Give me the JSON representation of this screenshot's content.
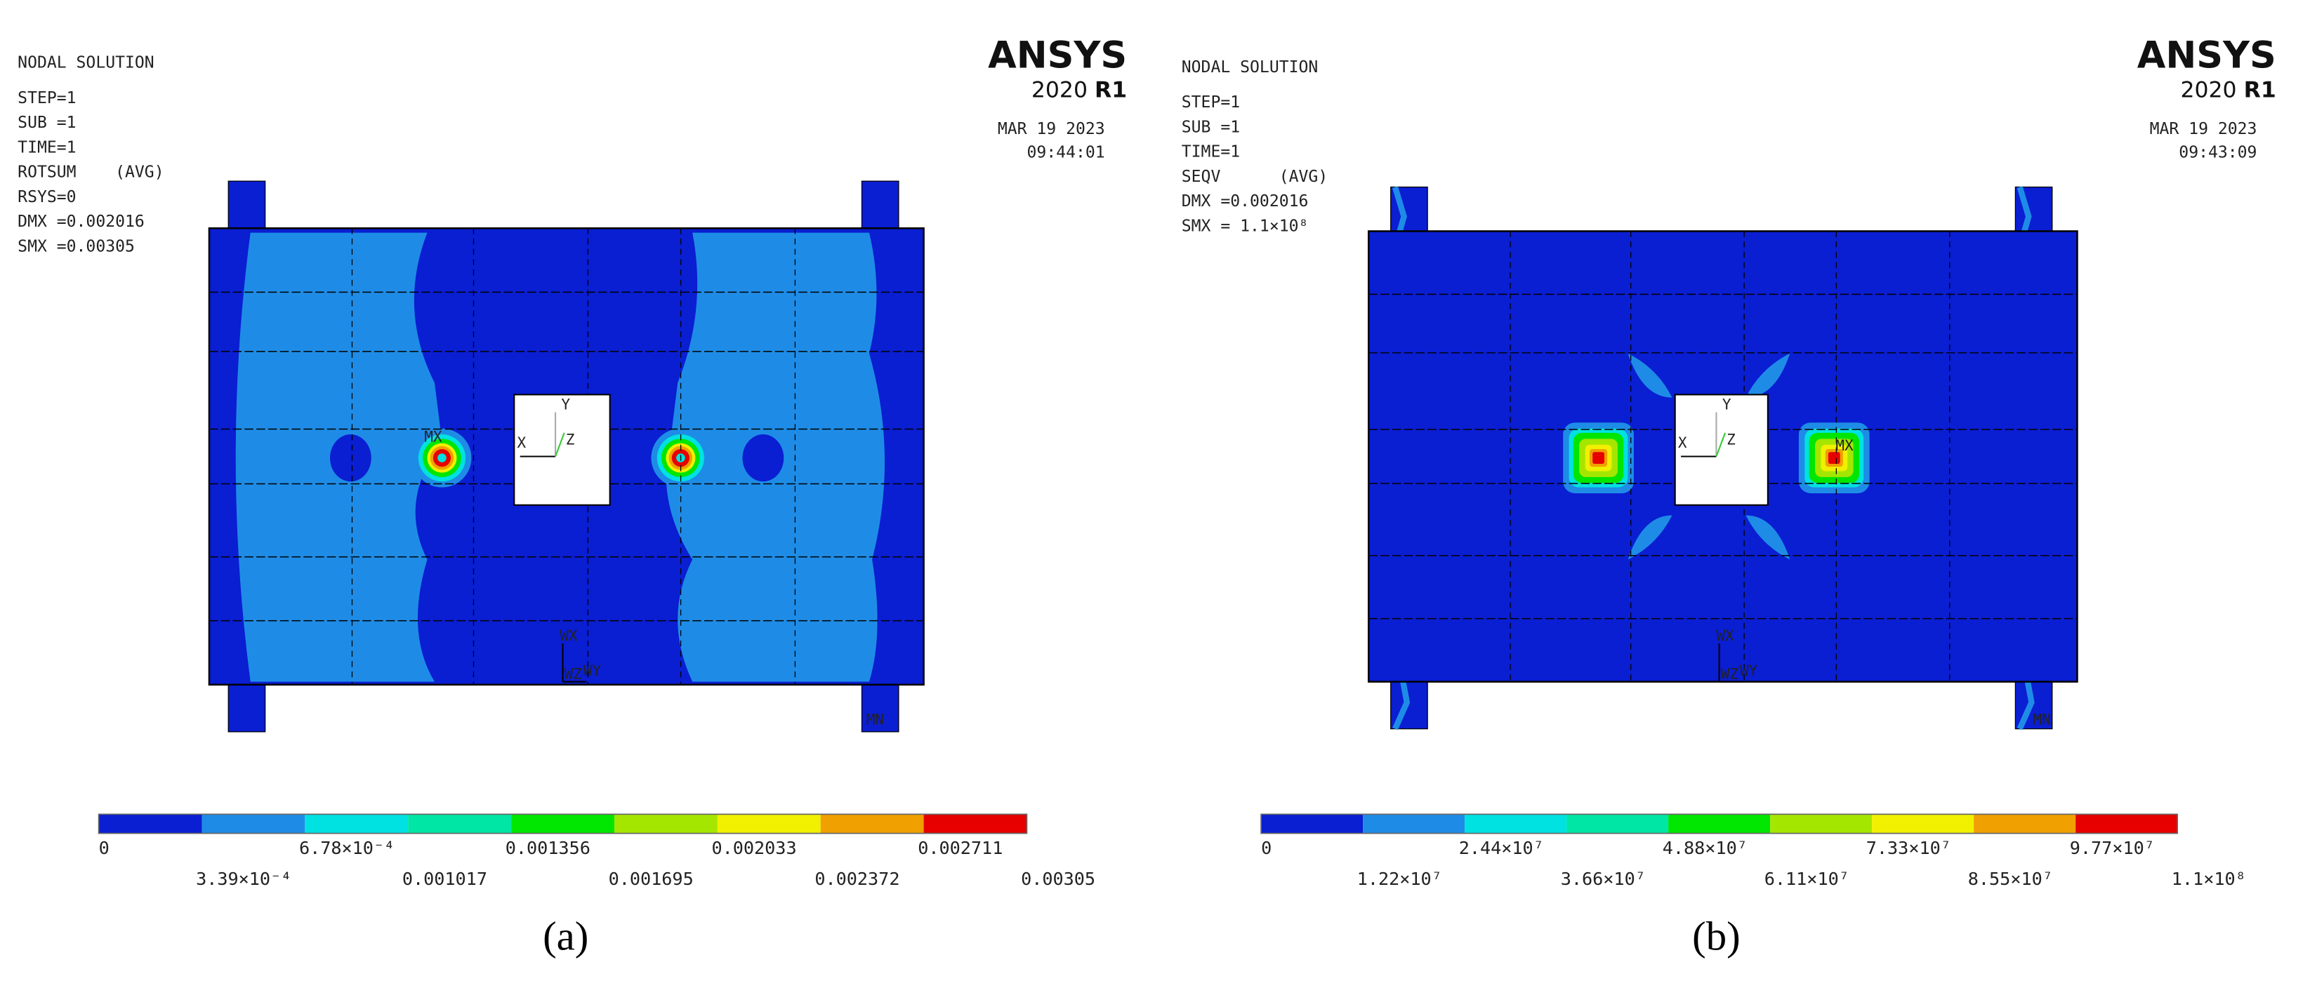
{
  "panels": [
    {
      "caption": "(a)",
      "logo": "ANSYS",
      "version": "2020",
      "release": "R1",
      "date": "MAR 19 2023",
      "time": "09:44:01",
      "info": [
        "NODAL SOLUTION",
        "STEP=1",
        "SUB =1",
        "TIME=1",
        "ROTSUM    (AVG)",
        "RSYS=0",
        "DMX =0.002016",
        "SMX =0.00305"
      ],
      "max_label": "MX",
      "min_label": "MN",
      "triad": [
        "X",
        "Y",
        "Z"
      ],
      "work_triad": [
        "WX",
        "WZ",
        "WY"
      ],
      "legend": {
        "colors": [
          "#0a1ed2",
          "#1e8ce6",
          "#00e1e1",
          "#00e6a5",
          "#00e600",
          "#a5e600",
          "#f0f000",
          "#f0a000",
          "#e60000"
        ],
        "labels": [
          "0",
          "3.39×10⁻⁴",
          "6.78×10⁻⁴",
          "0.001017",
          "0.001356",
          "0.001695",
          "0.002033",
          "0.002372",
          "0.002711",
          "0.00305"
        ]
      }
    },
    {
      "caption": "(b)",
      "logo": "ANSYS",
      "version": "2020",
      "release": "R1",
      "date": "MAR 19 2023",
      "time": "09:43:09",
      "info": [
        "NODAL SOLUTION",
        "STEP=1",
        "SUB =1",
        "TIME=1",
        "SEQV      (AVG)",
        "DMX =0.002016",
        "SMX = 1.1×10⁸"
      ],
      "max_label": "MX",
      "min_label": "MN",
      "triad": [
        "X",
        "Y",
        "Z"
      ],
      "work_triad": [
        "WX",
        "WZ",
        "WY"
      ],
      "legend": {
        "colors": [
          "#0a1ed2",
          "#1e8ce6",
          "#00e1e1",
          "#00e6a5",
          "#00e600",
          "#a5e600",
          "#f0f000",
          "#f0a000",
          "#e60000"
        ],
        "labels": [
          "0",
          "1.22×10⁷",
          "2.44×10⁷",
          "3.66×10⁷",
          "4.88×10⁷",
          "6.11×10⁷",
          "7.33×10⁷",
          "8.55×10⁷",
          "9.77×10⁷",
          "1.1×10⁸"
        ]
      }
    }
  ]
}
